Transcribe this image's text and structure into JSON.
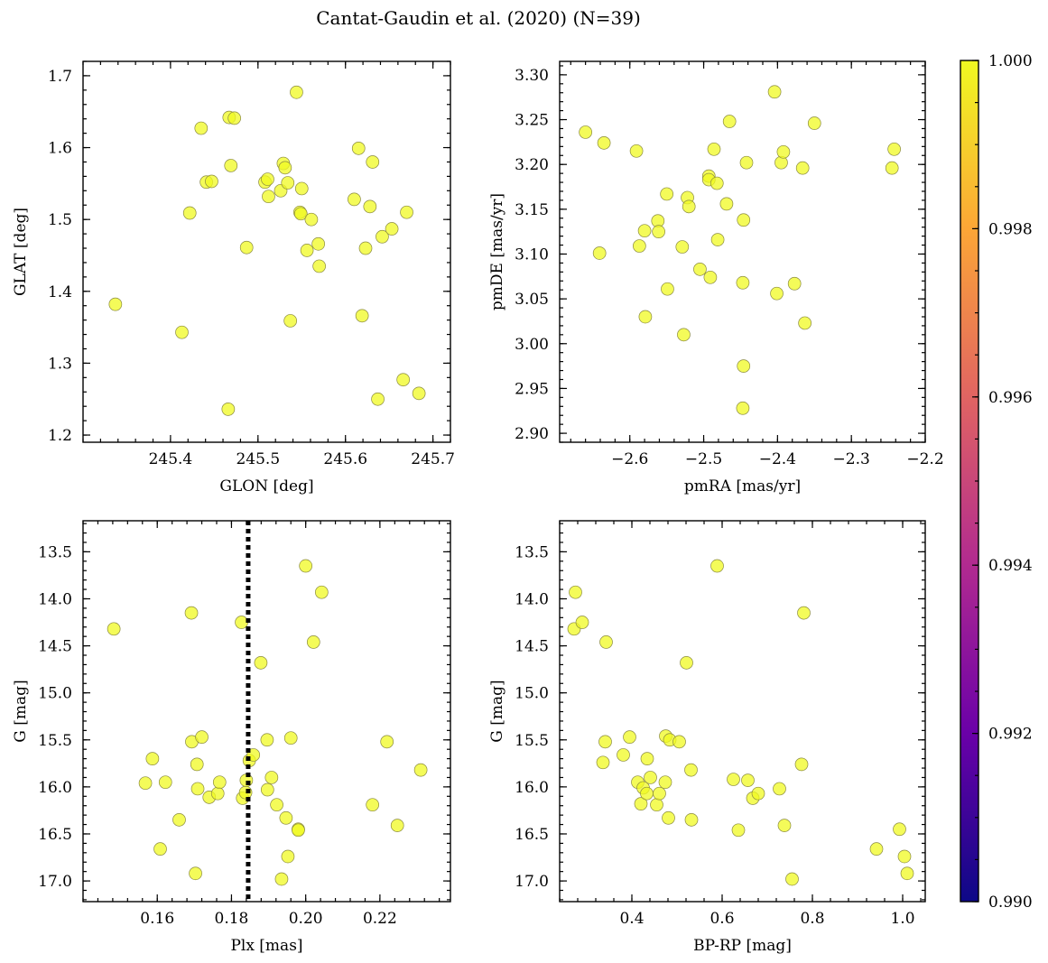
{
  "figure": {
    "title": "Cantat-Gaudin et al. (2020) (N=39)"
  },
  "colorbar": {
    "min": 0.99,
    "max": 1.0,
    "tick_labels": [
      "0.990",
      "0.992",
      "0.994",
      "0.996",
      "0.998",
      "1.000"
    ],
    "tick_values": [
      0.99,
      0.992,
      0.994,
      0.996,
      0.998,
      1.0
    ],
    "colormap": "plasma",
    "colors": [
      "#0d0887",
      "#6a00a8",
      "#b12a90",
      "#e16462",
      "#fca636",
      "#f0f921"
    ]
  },
  "point_color": "#f0f921",
  "chart_data": [
    {
      "id": "glon-glat",
      "type": "scatter",
      "xlabel": "GLON [deg]",
      "ylabel": "GLAT [deg]",
      "xlim": [
        245.3,
        245.72
      ],
      "ylim": [
        1.19,
        1.72
      ],
      "xticks": [
        245.4,
        245.5,
        245.6,
        245.7
      ],
      "xtick_labels": [
        "245.4",
        "245.5",
        "245.6",
        "245.7"
      ],
      "yticks": [
        1.2,
        1.3,
        1.4,
        1.5,
        1.6,
        1.7
      ],
      "ytick_labels": [
        "1.2",
        "1.3",
        "1.4",
        "1.5",
        "1.6",
        "1.7"
      ],
      "points": [
        [
          245.337,
          1.382
        ],
        [
          245.413,
          1.343
        ],
        [
          245.422,
          1.509
        ],
        [
          245.435,
          1.627
        ],
        [
          245.441,
          1.552
        ],
        [
          245.447,
          1.553
        ],
        [
          245.466,
          1.236
        ],
        [
          245.467,
          1.642
        ],
        [
          245.469,
          1.575
        ],
        [
          245.473,
          1.641
        ],
        [
          245.487,
          1.461
        ],
        [
          245.508,
          1.552
        ],
        [
          245.511,
          1.556
        ],
        [
          245.512,
          1.532
        ],
        [
          245.526,
          1.54
        ],
        [
          245.529,
          1.578
        ],
        [
          245.531,
          1.572
        ],
        [
          245.534,
          1.551
        ],
        [
          245.537,
          1.359
        ],
        [
          245.544,
          1.677
        ],
        [
          245.548,
          1.51
        ],
        [
          245.549,
          1.508
        ],
        [
          245.55,
          1.543
        ],
        [
          245.556,
          1.457
        ],
        [
          245.561,
          1.5
        ],
        [
          245.569,
          1.466
        ],
        [
          245.57,
          1.435
        ],
        [
          245.61,
          1.528
        ],
        [
          245.615,
          1.599
        ],
        [
          245.619,
          1.366
        ],
        [
          245.623,
          1.46
        ],
        [
          245.628,
          1.518
        ],
        [
          245.631,
          1.58
        ],
        [
          245.637,
          1.25
        ],
        [
          245.642,
          1.476
        ],
        [
          245.653,
          1.487
        ],
        [
          245.666,
          1.277
        ],
        [
          245.67,
          1.51
        ],
        [
          245.684,
          1.258
        ]
      ]
    },
    {
      "id": "pmra-pmde",
      "type": "scatter",
      "xlabel": "pmRA [mas/yr]",
      "ylabel": "pmDE [mas/yr]",
      "xlim": [
        -2.695,
        -2.2
      ],
      "ylim": [
        2.89,
        3.315
      ],
      "xticks": [
        -2.6,
        -2.5,
        -2.4,
        -2.3,
        -2.2
      ],
      "xtick_labels": [
        "−2.6",
        "−2.5",
        "−2.4",
        "−2.3",
        "−2.2"
      ],
      "yticks": [
        2.9,
        2.95,
        3.0,
        3.05,
        3.1,
        3.15,
        3.2,
        3.25,
        3.3
      ],
      "ytick_labels": [
        "2.90",
        "2.95",
        "3.00",
        "3.05",
        "3.10",
        "3.15",
        "3.20",
        "3.25",
        "3.30"
      ],
      "points": [
        [
          -2.66,
          3.236
        ],
        [
          -2.641,
          3.101
        ],
        [
          -2.635,
          3.224
        ],
        [
          -2.591,
          3.215
        ],
        [
          -2.587,
          3.109
        ],
        [
          -2.58,
          3.126
        ],
        [
          -2.579,
          3.03
        ],
        [
          -2.562,
          3.137
        ],
        [
          -2.561,
          3.125
        ],
        [
          -2.55,
          3.167
        ],
        [
          -2.549,
          3.061
        ],
        [
          -2.529,
          3.108
        ],
        [
          -2.527,
          3.01
        ],
        [
          -2.522,
          3.163
        ],
        [
          -2.52,
          3.153
        ],
        [
          -2.505,
          3.083
        ],
        [
          -2.493,
          3.187
        ],
        [
          -2.493,
          3.183
        ],
        [
          -2.491,
          3.074
        ],
        [
          -2.486,
          3.217
        ],
        [
          -2.482,
          3.179
        ],
        [
          -2.481,
          3.116
        ],
        [
          -2.469,
          3.156
        ],
        [
          -2.465,
          3.248
        ],
        [
          -2.447,
          3.068
        ],
        [
          -2.446,
          3.138
        ],
        [
          -2.446,
          2.975
        ],
        [
          -2.447,
          2.928
        ],
        [
          -2.442,
          3.202
        ],
        [
          -2.404,
          3.281
        ],
        [
          -2.401,
          3.056
        ],
        [
          -2.395,
          3.202
        ],
        [
          -2.392,
          3.214
        ],
        [
          -2.377,
          3.067
        ],
        [
          -2.366,
          3.196
        ],
        [
          -2.363,
          3.023
        ],
        [
          -2.35,
          3.246
        ],
        [
          -2.245,
          3.196
        ],
        [
          -2.242,
          3.217
        ]
      ]
    },
    {
      "id": "plx-g",
      "type": "scatter",
      "xlabel": "Plx [mas]",
      "ylabel": "G [mag]",
      "xlim": [
        0.14,
        0.239
      ],
      "ylim": [
        17.22,
        13.17
      ],
      "y_inverted": true,
      "xticks": [
        0.16,
        0.18,
        0.2,
        0.22
      ],
      "xtick_labels": [
        "0.16",
        "0.18",
        "0.20",
        "0.22"
      ],
      "yticks": [
        13.5,
        14.0,
        14.5,
        15.0,
        15.5,
        16.0,
        16.5,
        17.0
      ],
      "ytick_labels": [
        "13.5",
        "14.0",
        "14.5",
        "15.0",
        "15.5",
        "16.0",
        "16.5",
        "17.0"
      ],
      "vertical_line": 0.1845,
      "points": [
        [
          0.1483,
          14.32
        ],
        [
          0.1568,
          15.96
        ],
        [
          0.1587,
          15.7
        ],
        [
          0.1608,
          16.66
        ],
        [
          0.1622,
          15.95
        ],
        [
          0.1659,
          16.35
        ],
        [
          0.1692,
          14.15
        ],
        [
          0.1693,
          15.52
        ],
        [
          0.1703,
          16.92
        ],
        [
          0.1707,
          15.76
        ],
        [
          0.1709,
          16.02
        ],
        [
          0.172,
          15.47
        ],
        [
          0.174,
          16.11
        ],
        [
          0.1763,
          16.07
        ],
        [
          0.1768,
          15.95
        ],
        [
          0.1827,
          14.25
        ],
        [
          0.183,
          16.12
        ],
        [
          0.1838,
          16.06
        ],
        [
          0.184,
          15.93
        ],
        [
          0.1848,
          15.72
        ],
        [
          0.1859,
          15.66
        ],
        [
          0.1879,
          14.68
        ],
        [
          0.1896,
          15.5
        ],
        [
          0.1897,
          16.03
        ],
        [
          0.1908,
          15.9
        ],
        [
          0.1922,
          16.19
        ],
        [
          0.1935,
          16.98
        ],
        [
          0.1947,
          16.33
        ],
        [
          0.1952,
          16.74
        ],
        [
          0.196,
          15.48
        ],
        [
          0.198,
          16.45
        ],
        [
          0.198,
          16.46
        ],
        [
          0.2,
          13.65
        ],
        [
          0.2021,
          14.46
        ],
        [
          0.2043,
          13.93
        ],
        [
          0.218,
          16.19
        ],
        [
          0.2219,
          15.52
        ],
        [
          0.2247,
          16.41
        ],
        [
          0.231,
          15.82
        ]
      ]
    },
    {
      "id": "bprp-g",
      "type": "scatter",
      "xlabel": "BP-RP [mag]",
      "ylabel": "G [mag]",
      "xlim": [
        0.24,
        1.05
      ],
      "ylim": [
        17.22,
        13.17
      ],
      "y_inverted": true,
      "xticks": [
        0.4,
        0.6,
        0.8,
        1.0
      ],
      "xtick_labels": [
        "0.4",
        "0.6",
        "0.8",
        "1.0"
      ],
      "yticks": [
        13.5,
        14.0,
        14.5,
        15.0,
        15.5,
        16.0,
        16.5,
        17.0
      ],
      "ytick_labels": [
        "13.5",
        "14.0",
        "14.5",
        "15.0",
        "15.5",
        "16.0",
        "16.5",
        "17.0"
      ],
      "points": [
        [
          0.272,
          14.32
        ],
        [
          0.275,
          13.93
        ],
        [
          0.29,
          14.25
        ],
        [
          0.336,
          15.74
        ],
        [
          0.341,
          15.52
        ],
        [
          0.343,
          14.46
        ],
        [
          0.381,
          15.66
        ],
        [
          0.395,
          15.47
        ],
        [
          0.413,
          15.95
        ],
        [
          0.42,
          16.18
        ],
        [
          0.425,
          16.01
        ],
        [
          0.433,
          16.07
        ],
        [
          0.434,
          15.7
        ],
        [
          0.441,
          15.9
        ],
        [
          0.455,
          16.19
        ],
        [
          0.461,
          16.07
        ],
        [
          0.474,
          15.95
        ],
        [
          0.475,
          15.46
        ],
        [
          0.481,
          16.33
        ],
        [
          0.484,
          15.5
        ],
        [
          0.505,
          15.52
        ],
        [
          0.521,
          14.68
        ],
        [
          0.531,
          15.82
        ],
        [
          0.532,
          16.35
        ],
        [
          0.589,
          13.65
        ],
        [
          0.625,
          15.92
        ],
        [
          0.636,
          16.46
        ],
        [
          0.657,
          15.93
        ],
        [
          0.668,
          16.12
        ],
        [
          0.68,
          16.07
        ],
        [
          0.727,
          16.02
        ],
        [
          0.738,
          16.41
        ],
        [
          0.755,
          16.98
        ],
        [
          0.776,
          15.76
        ],
        [
          0.781,
          14.15
        ],
        [
          0.942,
          16.66
        ],
        [
          0.993,
          16.45
        ],
        [
          1.004,
          16.74
        ],
        [
          1.01,
          16.92
        ]
      ]
    }
  ]
}
